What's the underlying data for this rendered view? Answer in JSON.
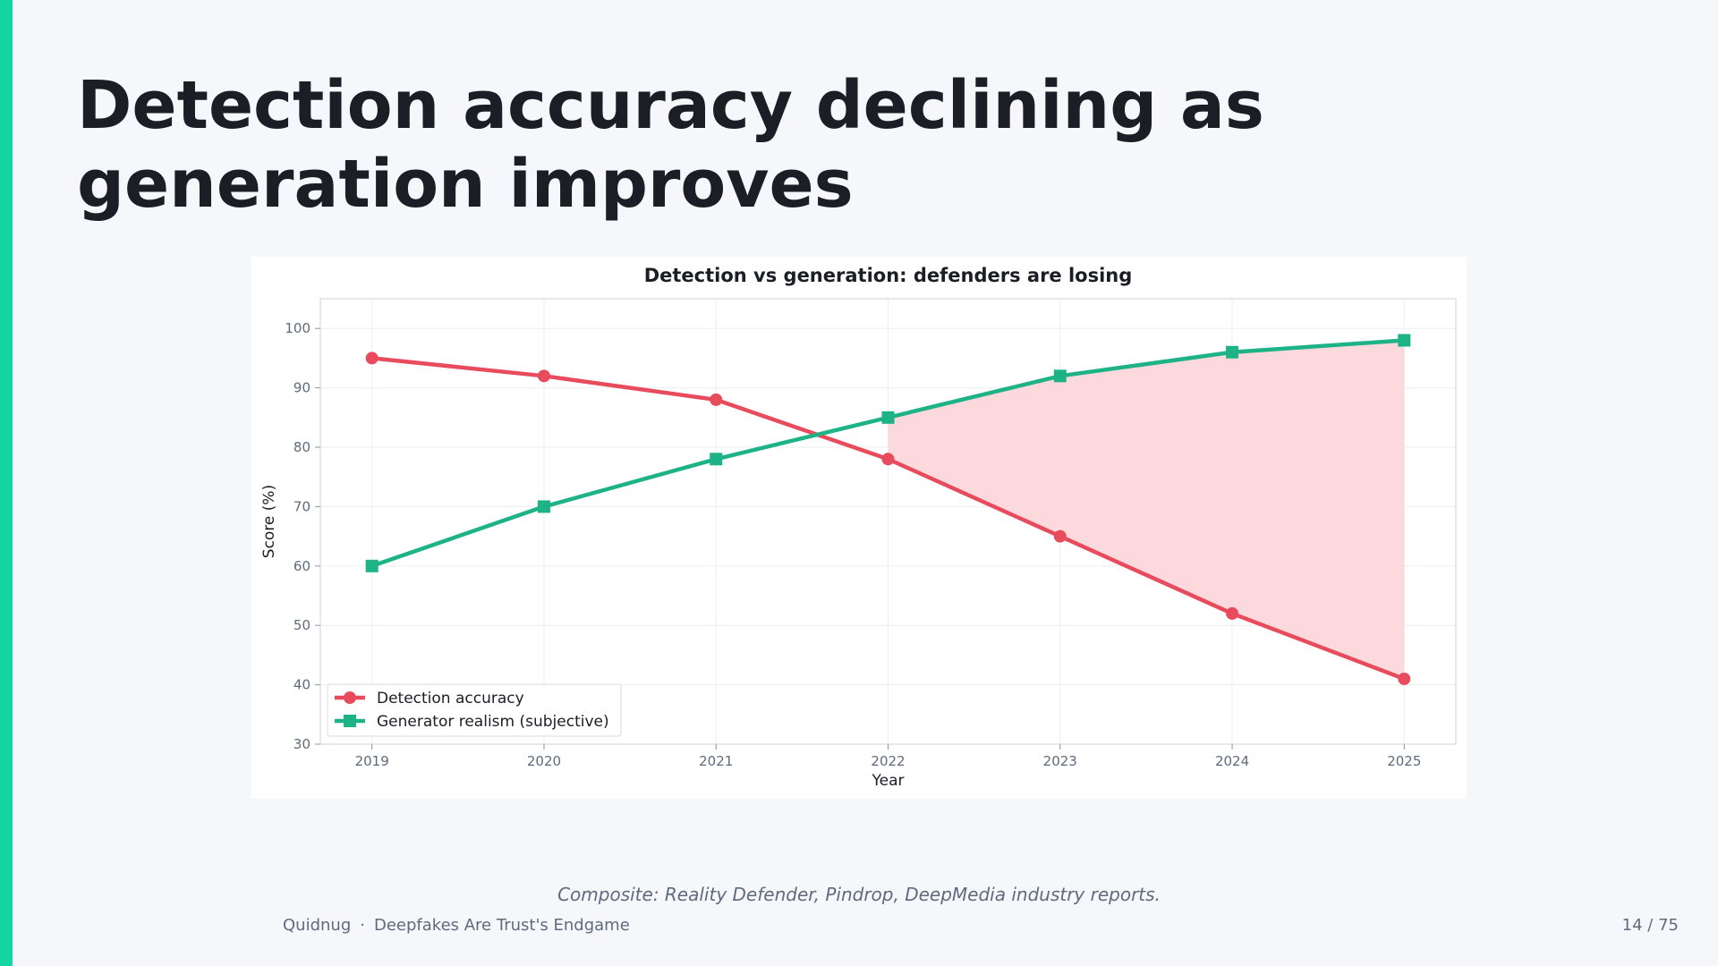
{
  "slide": {
    "title": "Detection accuracy declining as generation improves",
    "caption": "Composite: Reality Defender, Pindrop, DeepMedia industry reports.",
    "footer_brand": "Quidnug",
    "footer_separator": "·",
    "footer_deck": "Deepfakes Are Trust's Endgame",
    "page_number": "14 / 75",
    "accent_color": "#13d6a3"
  },
  "chart_data": {
    "type": "line",
    "title": "Detection vs generation: defenders are losing",
    "xlabel": "Year",
    "ylabel": "Score (%)",
    "x": [
      2019,
      2020,
      2021,
      2022,
      2023,
      2024,
      2025
    ],
    "xticks": [
      "2019",
      "2020",
      "2021",
      "2022",
      "2023",
      "2024",
      "2025"
    ],
    "yticks": [
      30,
      40,
      50,
      60,
      70,
      80,
      90,
      100
    ],
    "ylim": [
      30,
      105
    ],
    "xlim": [
      2018.7,
      2025.3
    ],
    "grid": true,
    "legend_position": "lower-left",
    "series": [
      {
        "name": "Detection accuracy",
        "values": [
          95,
          92,
          88,
          78,
          65,
          52,
          41
        ],
        "color": "#e84b5c",
        "marker": "circle"
      },
      {
        "name": "Generator realism (subjective)",
        "values": [
          60,
          70,
          78,
          85,
          92,
          96,
          98
        ],
        "color": "#1db386",
        "marker": "square"
      }
    ],
    "shaded_gap": {
      "from_x": 2022,
      "to_x": 2025,
      "color": "#fcd7db"
    }
  }
}
